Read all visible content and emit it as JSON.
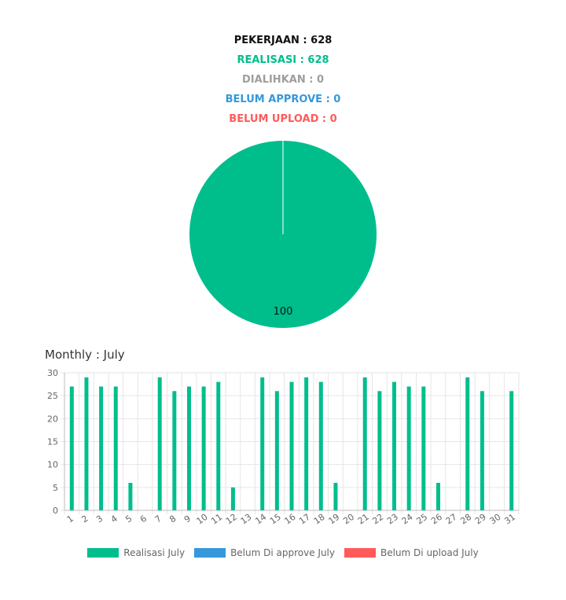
{
  "summary": {
    "pekerjaan": "PEKERJAAN : 628",
    "realisasi": "REALISASI : 628",
    "dialihkan": "DIALIHKAN : 0",
    "belum_approve": "BELUM APPROVE : 0",
    "belum_upload": "BELUM UPLOAD : 0"
  },
  "colors": {
    "realisasi": "#00be8c",
    "dialihkan": "#9e9e9e",
    "approve": "#3498db",
    "upload": "#ff5a5a"
  },
  "monthly_title": "Monthly : July",
  "chart_data": [
    {
      "type": "pie",
      "slices": [
        {
          "label": "",
          "value": 100
        }
      ],
      "data_label": "100"
    },
    {
      "type": "bar",
      "categories": [
        "1",
        "2",
        "3",
        "4",
        "5",
        "6",
        "7",
        "8",
        "9",
        "10",
        "11",
        "12",
        "13",
        "14",
        "15",
        "16",
        "17",
        "18",
        "19",
        "20",
        "21",
        "22",
        "23",
        "24",
        "25",
        "26",
        "27",
        "28",
        "29",
        "30",
        "31"
      ],
      "series": [
        {
          "name": "Realisasi July",
          "values": [
            27,
            29,
            27,
            27,
            6,
            0,
            29,
            26,
            27,
            27,
            28,
            5,
            0,
            29,
            26,
            28,
            29,
            28,
            6,
            0,
            29,
            26,
            28,
            27,
            27,
            6,
            0,
            29,
            26,
            0,
            26
          ]
        },
        {
          "name": "Belum Di approve July",
          "values": [
            0,
            0,
            0,
            0,
            0,
            0,
            0,
            0,
            0,
            0,
            0,
            0,
            0,
            0,
            0,
            0,
            0,
            0,
            0,
            0,
            0,
            0,
            0,
            0,
            0,
            0,
            0,
            0,
            0,
            0,
            0
          ]
        },
        {
          "name": "Belum Di upload July",
          "values": [
            0,
            0,
            0,
            0,
            0,
            0,
            0,
            0,
            0,
            0,
            0,
            0,
            0,
            0,
            0,
            0,
            0,
            0,
            0,
            0,
            0,
            0,
            0,
            0,
            0,
            0,
            0,
            0,
            0,
            0,
            0
          ]
        }
      ],
      "ylim": [
        0,
        30
      ],
      "yticks": [
        0,
        5,
        10,
        15,
        20,
        25,
        30
      ],
      "grid": true,
      "legend_position": "bottom"
    }
  ]
}
